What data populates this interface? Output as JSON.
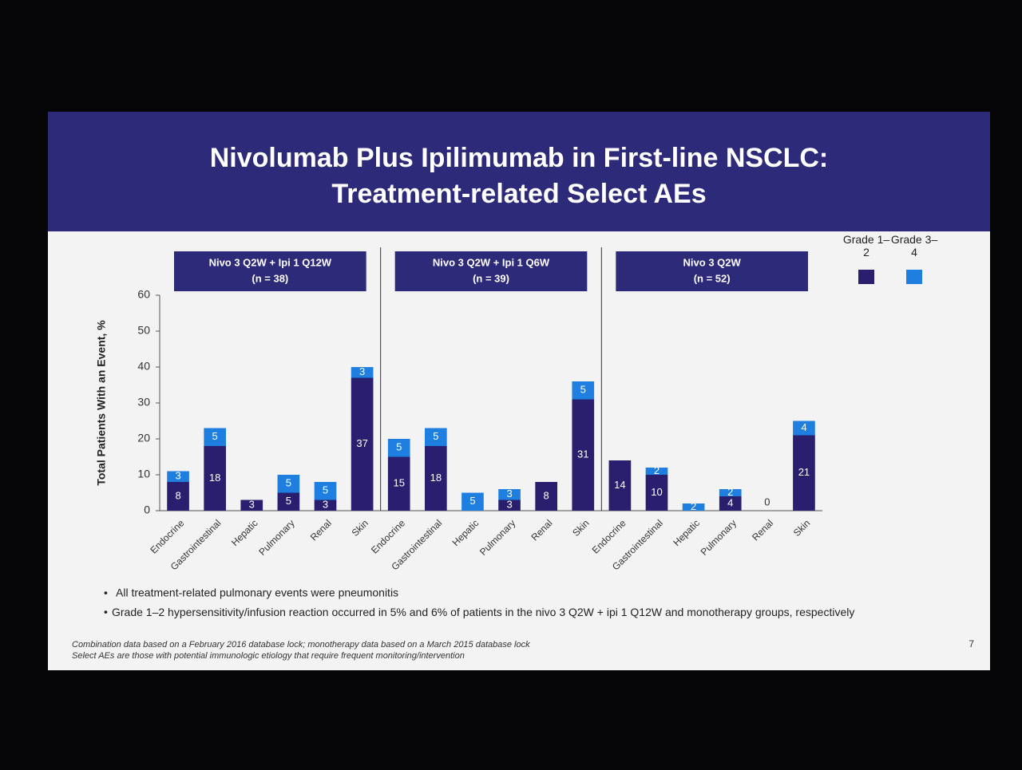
{
  "slide": {
    "title": [
      "Nivolumab Plus Ipilimumab in First-line NSCLC:",
      "Treatment-related Select AEs"
    ],
    "bullets": [
      "All treatment-related pulmonary events were pneumonitis",
      "Grade 1–2 hypersensitivity/infusion reaction occurred in 5% and 6% of patients in the nivo 3 Q2W + ipi 1 Q12W and monotherapy groups, respectively"
    ],
    "footnotes": [
      "Combination data based on a February 2016 database lock; monotherapy data based on a March 2015 database lock",
      "Select AEs are those with potential immunologic etiology that require frequent monitoring/intervention"
    ],
    "page_number": "7"
  },
  "chart_data": [
    {
      "type": "bar",
      "stacked": true,
      "panel_title": "Nivo 3 Q2W + Ipi 1 Q12W",
      "panel_subtitle": "(n = 38)",
      "y_label": "Total Patients With an Event, %",
      "ylim": [
        0,
        60
      ],
      "yticks": [
        0,
        10,
        20,
        30,
        40,
        50,
        60
      ],
      "categories": [
        "Endocrine",
        "Gastrointestinal",
        "Hepatic",
        "Pulmonary",
        "Renal",
        "Skin"
      ],
      "series": [
        {
          "name": "Grade 1–2",
          "color": "#2a1f6e",
          "values": [
            8,
            18,
            3,
            5,
            3,
            37
          ]
        },
        {
          "name": "Grade 3–4",
          "color": "#1f7fe0",
          "values": [
            3,
            5,
            null,
            5,
            5,
            3
          ]
        }
      ]
    },
    {
      "type": "bar",
      "stacked": true,
      "panel_title": "Nivo 3 Q2W + Ipi 1 Q6W",
      "panel_subtitle": "(n = 39)",
      "categories": [
        "Endocrine",
        "Gastrointestinal",
        "Hepatic",
        "Pulmonary",
        "Renal",
        "Skin"
      ],
      "series": [
        {
          "name": "Grade 1–2",
          "color": "#2a1f6e",
          "values": [
            15,
            18,
            null,
            3,
            8,
            31
          ]
        },
        {
          "name": "Grade 3–4",
          "color": "#1f7fe0",
          "values": [
            5,
            5,
            5,
            3,
            null,
            5
          ]
        }
      ]
    },
    {
      "type": "bar",
      "stacked": true,
      "panel_title": "Nivo 3 Q2W",
      "panel_subtitle": "(n = 52)",
      "categories": [
        "Endocrine",
        "Gastrointestinal",
        "Hepatic",
        "Pulmonary",
        "Renal",
        "Skin"
      ],
      "series": [
        {
          "name": "Grade 1–2",
          "color": "#2a1f6e",
          "values": [
            14,
            10,
            null,
            4,
            0,
            21
          ]
        },
        {
          "name": "Grade 3–4",
          "color": "#1f7fe0",
          "values": [
            null,
            2,
            2,
            2,
            null,
            4
          ]
        }
      ]
    }
  ]
}
